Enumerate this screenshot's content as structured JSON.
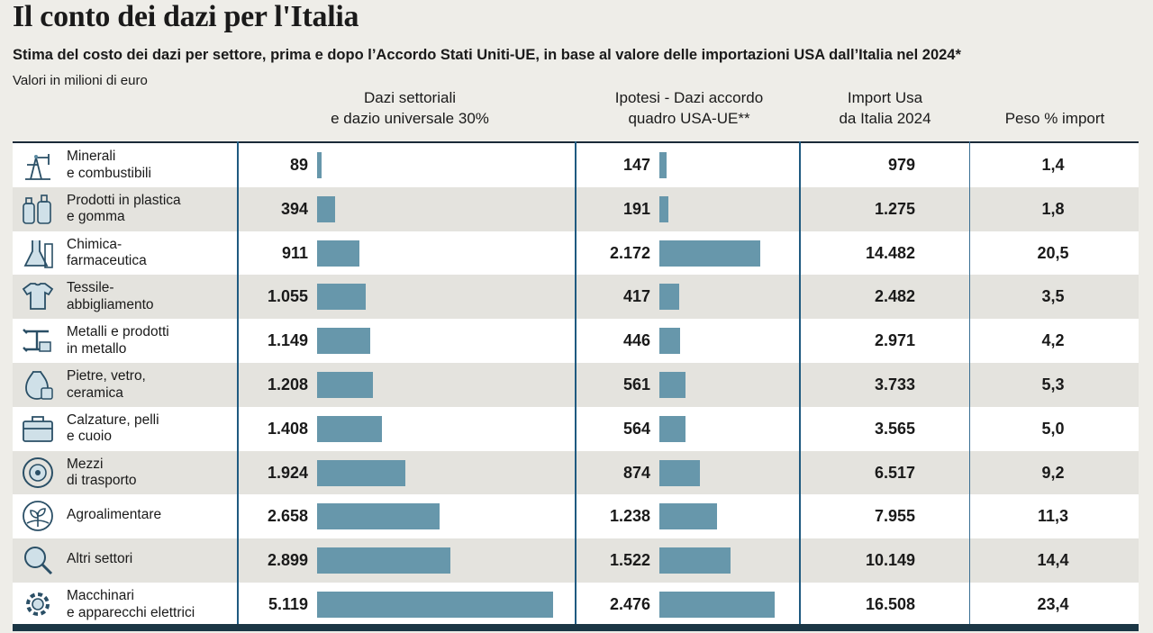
{
  "title": "Il conto dei dazi per l'Italia",
  "subtitle": "Stima del costo dei dazi per settore, prima e dopo l’Accordo Stati Uniti-UE, in base al valore delle importazioni USA dall’Italia nel 2024*",
  "unit": "Valori in milioni di euro",
  "columns": {
    "c1": "Dazi settoriali\ne dazio universale 30%",
    "c2": "Ipotesi - Dazi accordo\nquadro USA-UE**",
    "c3": "Import Usa\nda Italia 2024",
    "c4": "Peso % import"
  },
  "chart_data": {
    "type": "bar",
    "categories": [
      "Minerali\ne combustibili",
      "Prodotti in plastica\ne gomma",
      "Chimica-\nfarmaceutica",
      "Tessile-\nabbigliamento",
      "Metalli e prodotti\nin metallo",
      "Pietre, vetro,\nceramica",
      "Calzature, pelli\ne cuoio",
      "Mezzi\ndi trasporto",
      "Agroalimentare",
      "Altri settori",
      "Macchinari\ne apparecchi elettrici"
    ],
    "series": [
      {
        "name": "Dazi settoriali e dazio universale 30%",
        "values": [
          89,
          394,
          911,
          1055,
          1149,
          1208,
          1408,
          1924,
          2658,
          2899,
          5119
        ],
        "labels": [
          "89",
          "394",
          "911",
          "1.055",
          "1.149",
          "1.208",
          "1.408",
          "1.924",
          "2.658",
          "2.899",
          "5.119"
        ]
      },
      {
        "name": "Ipotesi - Dazi accordo quadro USA-UE**",
        "values": [
          147,
          191,
          2172,
          417,
          446,
          561,
          564,
          874,
          1238,
          1522,
          2476
        ],
        "labels": [
          "147",
          "191",
          "2.172",
          "417",
          "446",
          "561",
          "564",
          "874",
          "1.238",
          "1.522",
          "2.476"
        ]
      }
    ],
    "import_usa_2024": [
      "979",
      "1.275",
      "14.482",
      "2.482",
      "2.971",
      "3.733",
      "3.565",
      "6.517",
      "7.955",
      "10.149",
      "16.508"
    ],
    "peso_import": [
      "1,4",
      "1,8",
      "20,5",
      "3,5",
      "4,2",
      "5,3",
      "5,0",
      "9,2",
      "11,3",
      "14,4",
      "23,4"
    ],
    "icons": [
      "oil-pump-icon",
      "bottles-icon",
      "lab-flask-icon",
      "tshirt-icon",
      "metal-beam-icon",
      "vase-icon",
      "briefcase-icon",
      "wheel-icon",
      "plant-icon",
      "magnifier-icon",
      "gear-icon"
    ],
    "bar_color": "#6797ab"
  }
}
